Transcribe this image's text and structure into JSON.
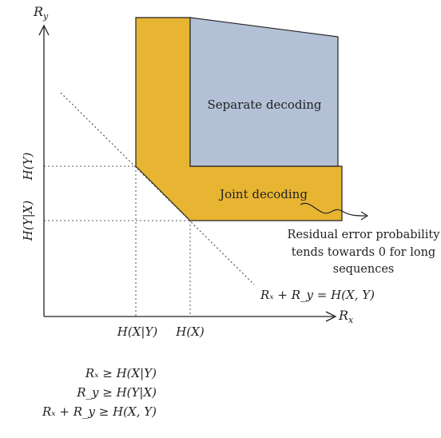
{
  "colors": {
    "joint_region": "#E8B532",
    "separate_region": "#B3C0D6",
    "axis": "#222222",
    "guide": "#555555"
  },
  "axes": {
    "y_label": "R",
    "y_label_sub": "y",
    "x_label": "R",
    "x_label_sub": "x"
  },
  "y_ticks": {
    "h_y": "H(Y)",
    "h_y_given_x": "H(Y|X)"
  },
  "x_ticks": {
    "h_x_given_y": "H(X|Y)",
    "h_x": "H(X)"
  },
  "regions": {
    "separate": "Separate decoding",
    "joint": "Joint decoding"
  },
  "annotation": {
    "line1": "Residual error probability",
    "line2": "tends towards 0 for long",
    "line3": "sequences"
  },
  "diagonal_label": "Rₓ + R_y = H(X, Y)",
  "inequalities": [
    "Rₓ ≥ H(X|Y)",
    "R_y ≥ H(Y|X)",
    "Rₓ + R_y ≥ H(X, Y)"
  ]
}
